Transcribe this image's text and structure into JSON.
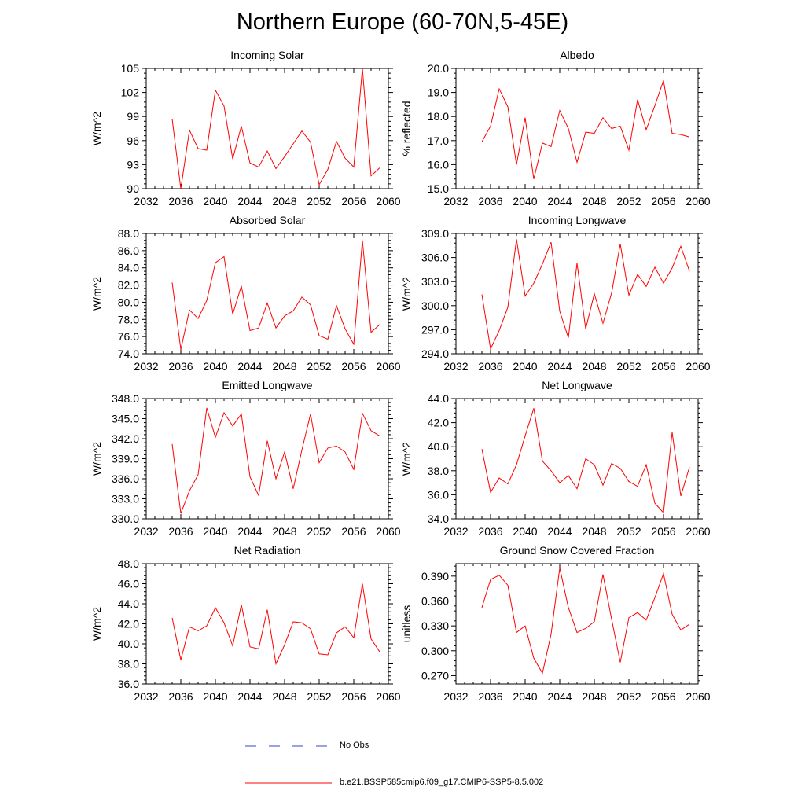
{
  "figure": {
    "title": "Northern Europe (60-70N,5-45E)",
    "legend": [
      {
        "label": "No Obs",
        "color": "#3344cc",
        "style": "dashed"
      },
      {
        "label": "b.e21.BSSP585cmip6.f09_g17.CMIP6-SSP5-8.5.002",
        "color": "#ff0000",
        "style": "solid"
      }
    ]
  },
  "chart_data": [
    {
      "type": "line",
      "title": "Incoming Solar",
      "ylabel": "W/m^2",
      "xlim": [
        2032,
        2060
      ],
      "ylim": [
        90,
        105
      ],
      "xticks": [
        "2032",
        "2036",
        "2040",
        "2044",
        "2048",
        "2052",
        "2056",
        "2060"
      ],
      "yticks": [
        "90",
        "93",
        "96",
        "99",
        "102",
        "105"
      ],
      "x": [
        2035,
        2036,
        2037,
        2038,
        2039,
        2040,
        2041,
        2042,
        2043,
        2044,
        2045,
        2046,
        2047,
        2048,
        2049,
        2050,
        2051,
        2052,
        2053,
        2054,
        2055,
        2056,
        2057,
        2058,
        2059
      ],
      "series": [
        {
          "color": "#ff0000",
          "values": [
            98.7,
            90.0,
            97.3,
            95.0,
            94.8,
            102.3,
            100.3,
            93.7,
            97.8,
            93.2,
            92.7,
            94.7,
            92.5,
            94.0,
            95.6,
            97.2,
            95.8,
            90.5,
            92.4,
            95.9,
            93.8,
            92.7,
            105.0,
            91.6,
            92.6
          ]
        }
      ]
    },
    {
      "type": "line",
      "title": "Albedo",
      "ylabel": "% reflected",
      "xlim": [
        2032,
        2060
      ],
      "ylim": [
        15,
        20
      ],
      "xticks": [
        "2032",
        "2036",
        "2040",
        "2044",
        "2048",
        "2052",
        "2056",
        "2060"
      ],
      "yticks": [
        "15.0",
        "16.0",
        "17.0",
        "18.0",
        "19.0",
        "20.0"
      ],
      "x": [
        2035,
        2036,
        2037,
        2038,
        2039,
        2040,
        2041,
        2042,
        2043,
        2044,
        2045,
        2046,
        2047,
        2048,
        2049,
        2050,
        2051,
        2052,
        2053,
        2054,
        2055,
        2056,
        2057,
        2058,
        2059
      ],
      "series": [
        {
          "color": "#ff0000",
          "values": [
            16.95,
            17.6,
            19.15,
            18.4,
            16.0,
            17.95,
            15.4,
            16.9,
            16.75,
            18.25,
            17.5,
            16.1,
            17.35,
            17.3,
            17.95,
            17.5,
            17.6,
            16.6,
            18.7,
            17.45,
            18.45,
            19.5,
            17.3,
            17.25,
            17.15
          ]
        }
      ]
    },
    {
      "type": "line",
      "title": "Absorbed Solar",
      "ylabel": "W/m^2",
      "xlim": [
        2032,
        2060
      ],
      "ylim": [
        74,
        88
      ],
      "xticks": [
        "2032",
        "2036",
        "2040",
        "2044",
        "2048",
        "2052",
        "2056",
        "2060"
      ],
      "yticks": [
        "74.0",
        "76.0",
        "78.0",
        "80.0",
        "82.0",
        "84.0",
        "86.0",
        "88.0"
      ],
      "x": [
        2035,
        2036,
        2037,
        2038,
        2039,
        2040,
        2041,
        2042,
        2043,
        2044,
        2045,
        2046,
        2047,
        2048,
        2049,
        2050,
        2051,
        2052,
        2053,
        2054,
        2055,
        2056,
        2057,
        2058,
        2059
      ],
      "series": [
        {
          "color": "#ff0000",
          "values": [
            82.3,
            74.5,
            79.1,
            78.1,
            80.2,
            84.6,
            85.3,
            78.6,
            81.9,
            76.7,
            77.0,
            79.9,
            77.0,
            78.4,
            79.0,
            80.6,
            79.7,
            76.1,
            75.7,
            79.6,
            76.9,
            75.1,
            87.2,
            76.5,
            77.4
          ]
        }
      ]
    },
    {
      "type": "line",
      "title": "Incoming Longwave",
      "ylabel": "W/m^2",
      "xlim": [
        2032,
        2060
      ],
      "ylim": [
        294,
        309
      ],
      "xticks": [
        "2032",
        "2036",
        "2040",
        "2044",
        "2048",
        "2052",
        "2056",
        "2060"
      ],
      "yticks": [
        "294.0",
        "297.0",
        "300.0",
        "303.0",
        "306.0",
        "309.0"
      ],
      "x": [
        2035,
        2036,
        2037,
        2038,
        2039,
        2040,
        2041,
        2042,
        2043,
        2044,
        2045,
        2046,
        2047,
        2048,
        2049,
        2050,
        2051,
        2052,
        2053,
        2054,
        2055,
        2056,
        2057,
        2058,
        2059
      ],
      "series": [
        {
          "color": "#ff0000",
          "values": [
            301.4,
            294.6,
            296.9,
            299.8,
            308.3,
            301.2,
            302.8,
            305.2,
            307.9,
            299.3,
            296.0,
            305.3,
            297.1,
            301.5,
            297.8,
            301.6,
            307.7,
            301.3,
            303.9,
            302.4,
            304.8,
            302.8,
            304.7,
            307.4,
            304.3
          ]
        }
      ]
    },
    {
      "type": "line",
      "title": "Emitted Longwave",
      "ylabel": "W/m^2",
      "xlim": [
        2032,
        2060
      ],
      "ylim": [
        330,
        348
      ],
      "xticks": [
        "2032",
        "2036",
        "2040",
        "2044",
        "2048",
        "2052",
        "2056",
        "2060"
      ],
      "yticks": [
        "330.0",
        "333.0",
        "336.0",
        "339.0",
        "342.0",
        "345.0",
        "348.0"
      ],
      "x": [
        2035,
        2036,
        2037,
        2038,
        2039,
        2040,
        2041,
        2042,
        2043,
        2044,
        2045,
        2046,
        2047,
        2048,
        2049,
        2050,
        2051,
        2052,
        2053,
        2054,
        2055,
        2056,
        2057,
        2058,
        2059
      ],
      "series": [
        {
          "color": "#ff0000",
          "values": [
            341.2,
            330.8,
            334.2,
            336.6,
            346.6,
            342.2,
            345.9,
            343.9,
            345.7,
            336.3,
            333.5,
            341.7,
            336.0,
            340.0,
            334.5,
            340.3,
            345.7,
            338.4,
            340.6,
            340.9,
            340.0,
            337.4,
            345.8,
            343.2,
            342.4
          ]
        }
      ]
    },
    {
      "type": "line",
      "title": "Net Longwave",
      "ylabel": "W/m^2",
      "xlim": [
        2032,
        2060
      ],
      "ylim": [
        34,
        44
      ],
      "xticks": [
        "2032",
        "2036",
        "2040",
        "2044",
        "2048",
        "2052",
        "2056",
        "2060"
      ],
      "yticks": [
        "34.0",
        "36.0",
        "38.0",
        "40.0",
        "42.0",
        "44.0"
      ],
      "x": [
        2035,
        2036,
        2037,
        2038,
        2039,
        2040,
        2041,
        2042,
        2043,
        2044,
        2045,
        2046,
        2047,
        2048,
        2049,
        2050,
        2051,
        2052,
        2053,
        2054,
        2055,
        2056,
        2057,
        2058,
        2059
      ],
      "series": [
        {
          "color": "#ff0000",
          "values": [
            39.8,
            36.2,
            37.4,
            36.9,
            38.5,
            40.9,
            43.2,
            38.8,
            38.0,
            37.0,
            37.6,
            36.5,
            39.0,
            38.5,
            36.8,
            38.6,
            38.2,
            37.1,
            36.7,
            38.5,
            35.3,
            34.5,
            41.2,
            35.9,
            38.3
          ]
        }
      ]
    },
    {
      "type": "line",
      "title": "Net Radiation",
      "ylabel": "W/m^2",
      "xlim": [
        2032,
        2060
      ],
      "ylim": [
        36,
        48
      ],
      "xticks": [
        "2032",
        "2036",
        "2040",
        "2044",
        "2048",
        "2052",
        "2056",
        "2060"
      ],
      "yticks": [
        "36.0",
        "38.0",
        "40.0",
        "42.0",
        "44.0",
        "46.0",
        "48.0"
      ],
      "x": [
        2035,
        2036,
        2037,
        2038,
        2039,
        2040,
        2041,
        2042,
        2043,
        2044,
        2045,
        2046,
        2047,
        2048,
        2049,
        2050,
        2051,
        2052,
        2053,
        2054,
        2055,
        2056,
        2057,
        2058,
        2059
      ],
      "series": [
        {
          "color": "#ff0000",
          "values": [
            42.6,
            38.4,
            41.7,
            41.3,
            41.8,
            43.6,
            42.1,
            39.8,
            43.9,
            39.7,
            39.5,
            43.4,
            38.0,
            39.9,
            42.2,
            42.1,
            41.5,
            39.0,
            38.9,
            41.1,
            41.7,
            40.6,
            46.0,
            40.5,
            39.2
          ]
        }
      ]
    },
    {
      "type": "line",
      "title": "Ground Snow Covered Fraction",
      "ylabel": "unitless",
      "xlim": [
        2032,
        2060
      ],
      "ylim": [
        0.26,
        0.405
      ],
      "xticks": [
        "2032",
        "2036",
        "2040",
        "2044",
        "2048",
        "2052",
        "2056",
        "2060"
      ],
      "yticks": [
        "0.270",
        "0.300",
        "0.330",
        "0.360",
        "0.390"
      ],
      "ytick_values": [
        0.27,
        0.3,
        0.33,
        0.36,
        0.39
      ],
      "x": [
        2035,
        2036,
        2037,
        2038,
        2039,
        2040,
        2041,
        2042,
        2043,
        2044,
        2045,
        2046,
        2047,
        2048,
        2049,
        2050,
        2051,
        2052,
        2053,
        2054,
        2055,
        2056,
        2057,
        2058,
        2059
      ],
      "series": [
        {
          "color": "#ff0000",
          "values": [
            0.352,
            0.386,
            0.391,
            0.379,
            0.322,
            0.33,
            0.291,
            0.273,
            0.32,
            0.4,
            0.352,
            0.322,
            0.327,
            0.335,
            0.392,
            0.338,
            0.286,
            0.34,
            0.346,
            0.337,
            0.364,
            0.393,
            0.344,
            0.325,
            0.332
          ]
        }
      ]
    }
  ]
}
